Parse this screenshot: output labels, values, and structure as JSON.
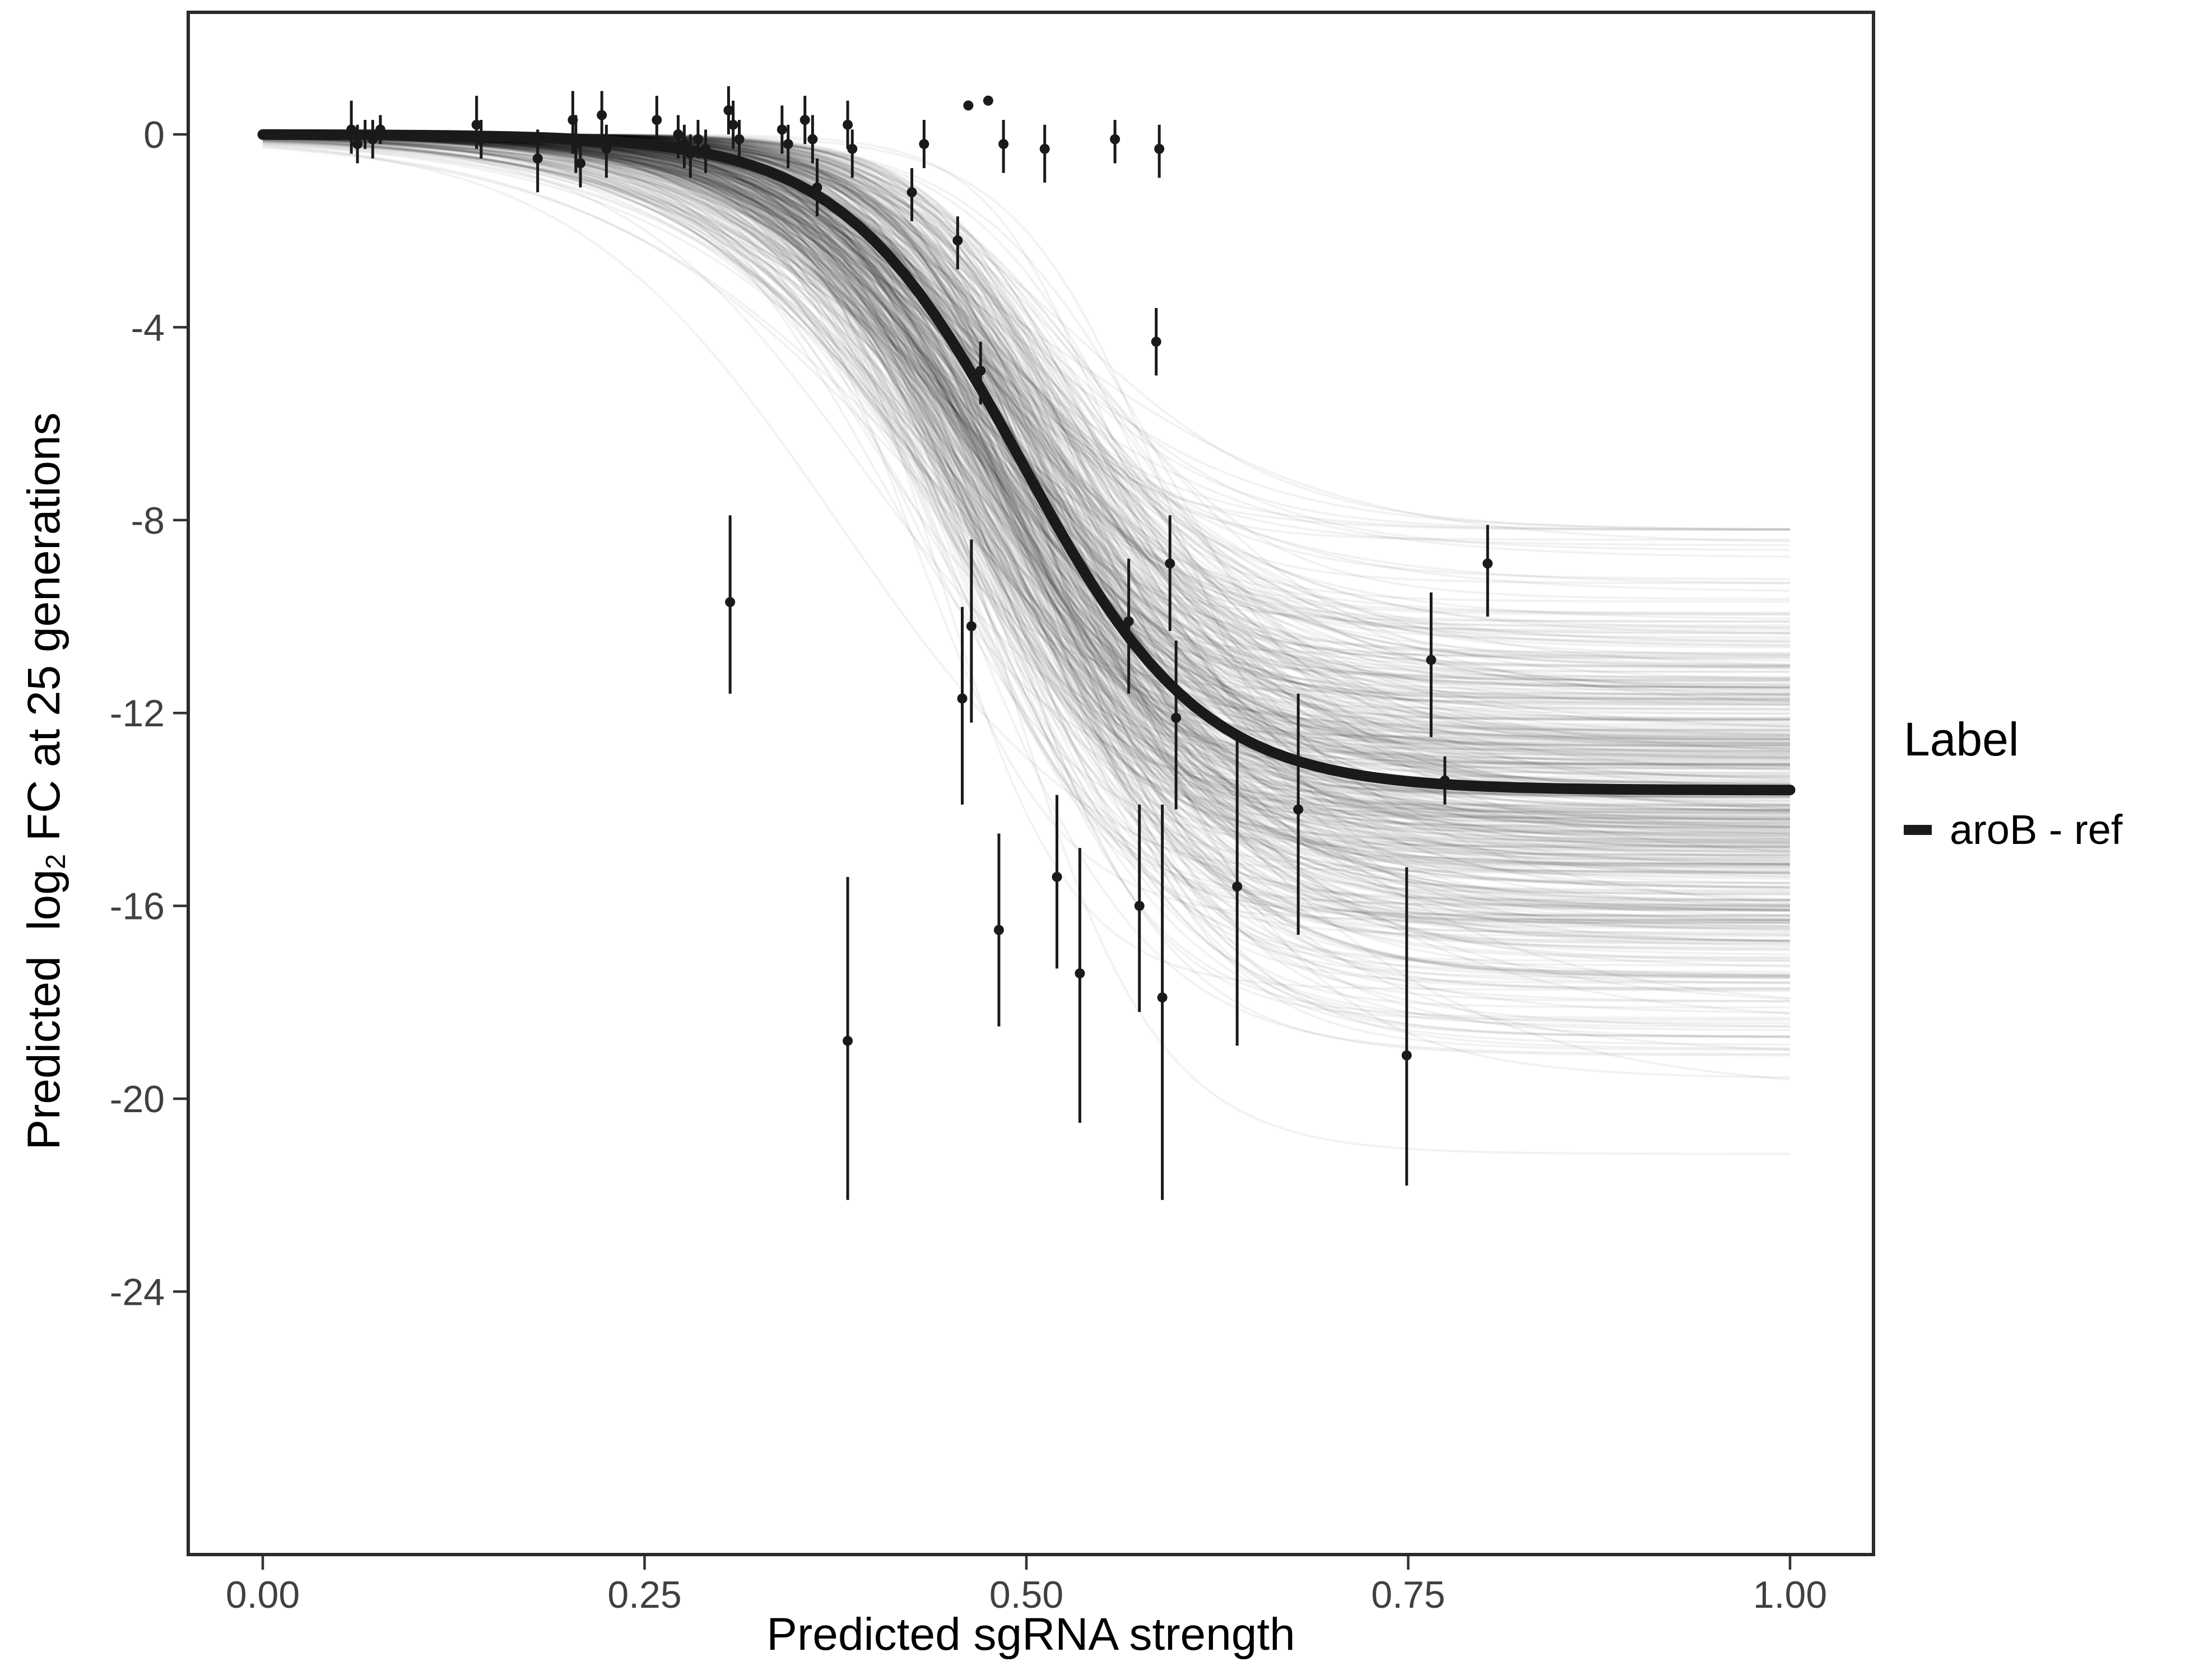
{
  "chart_data": {
    "type": "scatter",
    "title": "",
    "xlabel": "Predicted sgRNA strength",
    "ylabel": "Predicted log2 FC at 25 generations",
    "ylabel_parts": {
      "pre": "Predicted  log",
      "sub": "2",
      "post": " FC at 25 generations"
    },
    "xlim": [
      -0.05,
      1.055
    ],
    "ylim": [
      -29.5,
      2.5
    ],
    "grid": "off",
    "x_ticks": {
      "values": [
        0,
        0.25,
        0.5,
        0.75,
        1.0
      ],
      "labels": [
        "0.00",
        "0.25",
        "0.50",
        "0.75",
        "1.00"
      ]
    },
    "y_ticks": {
      "values": [
        0,
        -4,
        -8,
        -12,
        -16,
        -20,
        -24
      ],
      "labels": [
        "0",
        "-4",
        "-8",
        "-12",
        "-16",
        "-20",
        "-24"
      ]
    },
    "fit_curve": {
      "label": "aroB - ref",
      "model": "logistic",
      "params": {
        "L": -13.6,
        "x0": 0.497,
        "k": 17
      },
      "x_range": [
        0,
        1
      ],
      "color": "#1a1a1a"
    },
    "ensemble": {
      "description": "bootstrap logistic fits",
      "count": 500,
      "seed": 7,
      "L_mean": -13.9,
      "L_sd": 2.3,
      "L_clamp": [
        -21.5,
        -8.2
      ],
      "x0_mean": 0.492,
      "x0_sd": 0.032,
      "k_mean": 16,
      "k_sd": 3.5,
      "k_clamp": [
        9,
        26
      ],
      "color": "rgba(0,0,0,0.05)"
    },
    "points": [
      {
        "x": 0.058,
        "y": 0.1,
        "lo": -0.4,
        "hi": 0.7
      },
      {
        "x": 0.062,
        "y": -0.2,
        "lo": -0.6,
        "hi": 0.2
      },
      {
        "x": 0.067,
        "y": 0.0,
        "lo": -0.3,
        "hi": 0.3
      },
      {
        "x": 0.072,
        "y": -0.1,
        "lo": -0.5,
        "hi": 0.3
      },
      {
        "x": 0.077,
        "y": 0.1,
        "lo": -0.2,
        "hi": 0.4
      },
      {
        "x": 0.14,
        "y": 0.2,
        "lo": -0.3,
        "hi": 0.8
      },
      {
        "x": 0.143,
        "y": -0.1,
        "lo": -0.5,
        "hi": 0.3
      },
      {
        "x": 0.18,
        "y": -0.5,
        "lo": -1.2,
        "hi": 0.1
      },
      {
        "x": 0.203,
        "y": 0.3,
        "lo": -0.4,
        "hi": 0.9
      },
      {
        "x": 0.205,
        "y": -0.2,
        "lo": -0.8,
        "hi": 0.4
      },
      {
        "x": 0.208,
        "y": -0.6,
        "lo": -1.1,
        "hi": -0.1
      },
      {
        "x": 0.222,
        "y": 0.4,
        "lo": -0.1,
        "hi": 0.9
      },
      {
        "x": 0.225,
        "y": -0.3,
        "lo": -0.9,
        "hi": 0.2
      },
      {
        "x": 0.258,
        "y": 0.3,
        "lo": -0.2,
        "hi": 0.8
      },
      {
        "x": 0.272,
        "y": 0.0,
        "lo": -0.5,
        "hi": 0.4
      },
      {
        "x": 0.276,
        "y": -0.2,
        "lo": -0.7,
        "hi": 0.2
      },
      {
        "x": 0.28,
        "y": -0.4,
        "lo": -0.9,
        "hi": 0.0
      },
      {
        "x": 0.285,
        "y": -0.1,
        "lo": -0.5,
        "hi": 0.3
      },
      {
        "x": 0.29,
        "y": -0.3,
        "lo": -0.8,
        "hi": 0.1
      },
      {
        "x": 0.305,
        "y": 0.5,
        "lo": 0.0,
        "hi": 1.0
      },
      {
        "x": 0.308,
        "y": 0.2,
        "lo": -0.3,
        "hi": 0.7
      },
      {
        "x": 0.312,
        "y": -0.1,
        "lo": -0.6,
        "hi": 0.3
      },
      {
        "x": 0.306,
        "y": -9.7,
        "lo": -11.6,
        "hi": -7.9
      },
      {
        "x": 0.34,
        "y": 0.1,
        "lo": -0.4,
        "hi": 0.6
      },
      {
        "x": 0.344,
        "y": -0.2,
        "lo": -0.7,
        "hi": 0.2
      },
      {
        "x": 0.355,
        "y": 0.3,
        "lo": -0.2,
        "hi": 0.8
      },
      {
        "x": 0.36,
        "y": -0.1,
        "lo": -0.6,
        "hi": 0.4
      },
      {
        "x": 0.363,
        "y": -1.1,
        "lo": -1.7,
        "hi": -0.5
      },
      {
        "x": 0.383,
        "y": 0.2,
        "lo": -0.3,
        "hi": 0.7
      },
      {
        "x": 0.386,
        "y": -0.3,
        "lo": -0.9,
        "hi": 0.1
      },
      {
        "x": 0.383,
        "y": -18.8,
        "lo": -22.1,
        "hi": -15.4
      },
      {
        "x": 0.425,
        "y": -1.2,
        "lo": -1.8,
        "hi": -0.7
      },
      {
        "x": 0.433,
        "y": -0.2,
        "lo": -0.7,
        "hi": 0.3
      },
      {
        "x": 0.455,
        "y": -2.2,
        "lo": -2.8,
        "hi": -1.7
      },
      {
        "x": 0.458,
        "y": -11.7,
        "lo": -13.9,
        "hi": -9.8
      },
      {
        "x": 0.464,
        "y": -10.2,
        "lo": -12.2,
        "hi": -8.4
      },
      {
        "x": 0.462,
        "y": 0.6,
        "lo": 0.6,
        "hi": 0.6
      },
      {
        "x": 0.475,
        "y": 0.7,
        "lo": 0.7,
        "hi": 0.7
      },
      {
        "x": 0.47,
        "y": -4.9,
        "lo": -5.6,
        "hi": -4.3
      },
      {
        "x": 0.482,
        "y": -16.5,
        "lo": -18.5,
        "hi": -14.5
      },
      {
        "x": 0.485,
        "y": -0.2,
        "lo": -0.8,
        "hi": 0.3
      },
      {
        "x": 0.512,
        "y": -0.3,
        "lo": -1.0,
        "hi": 0.2
      },
      {
        "x": 0.52,
        "y": -15.4,
        "lo": -17.3,
        "hi": -13.7
      },
      {
        "x": 0.535,
        "y": -17.4,
        "lo": -20.5,
        "hi": -14.8
      },
      {
        "x": 0.558,
        "y": -0.1,
        "lo": -0.6,
        "hi": 0.3
      },
      {
        "x": 0.567,
        "y": -10.1,
        "lo": -11.6,
        "hi": -8.8
      },
      {
        "x": 0.574,
        "y": -16.0,
        "lo": -18.2,
        "hi": -13.9
      },
      {
        "x": 0.585,
        "y": -4.3,
        "lo": -5.0,
        "hi": -3.6
      },
      {
        "x": 0.589,
        "y": -17.9,
        "lo": -22.1,
        "hi": -13.9
      },
      {
        "x": 0.587,
        "y": -0.3,
        "lo": -0.9,
        "hi": 0.2
      },
      {
        "x": 0.594,
        "y": -8.9,
        "lo": -10.3,
        "hi": -7.9
      },
      {
        "x": 0.598,
        "y": -12.1,
        "lo": -14.0,
        "hi": -10.5
      },
      {
        "x": 0.638,
        "y": -15.6,
        "lo": -18.9,
        "hi": -12.5
      },
      {
        "x": 0.678,
        "y": -14.0,
        "lo": -16.6,
        "hi": -11.6
      },
      {
        "x": 0.749,
        "y": -19.1,
        "lo": -21.8,
        "hi": -15.2
      },
      {
        "x": 0.765,
        "y": -10.9,
        "lo": -12.5,
        "hi": -9.5
      },
      {
        "x": 0.774,
        "y": -13.4,
        "lo": -13.9,
        "hi": -12.9
      },
      {
        "x": 0.802,
        "y": -8.9,
        "lo": -10.0,
        "hi": -8.1
      }
    ],
    "legend": {
      "title": "Label",
      "position": "right",
      "entries": [
        {
          "label": "aroB - ref",
          "color": "#1a1a1a"
        }
      ]
    },
    "point_color": "#1a1a1a"
  }
}
